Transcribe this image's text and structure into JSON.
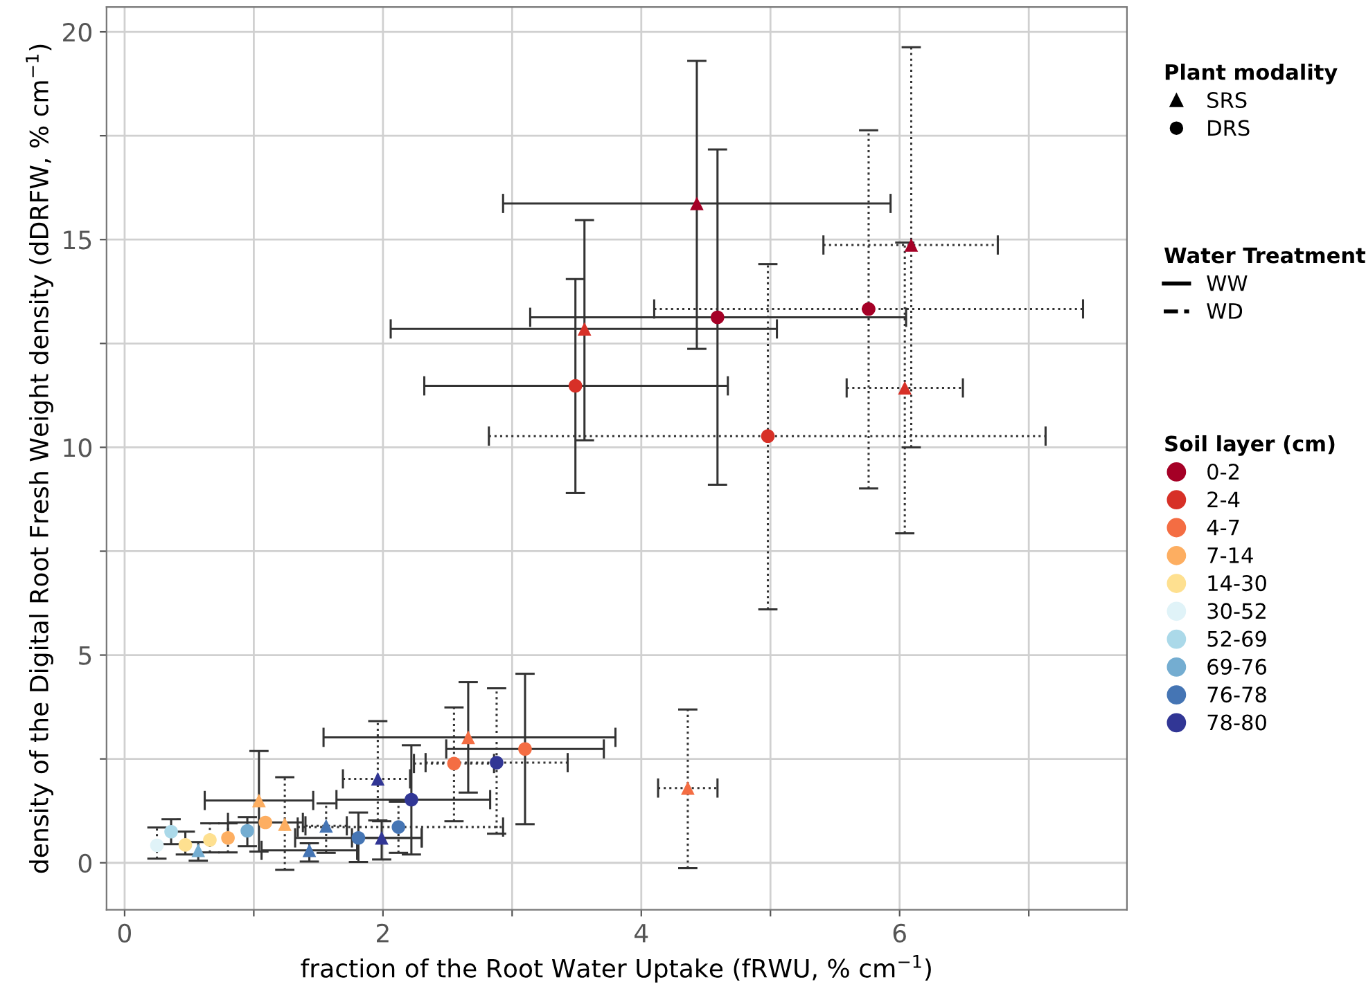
{
  "chart_data": {
    "type": "scatter",
    "xlabel": "fraction of the Root Water Uptake (fRWU, % cm$^{−1}$)",
    "ylabel": "density of the Digital Root Fresh Weight density (dDRFW, % cm$^{−1}$)",
    "xlim": [
      -0.14,
      7.76
    ],
    "ylim": [
      -1.13,
      20.6
    ],
    "xticks": [
      0,
      {
        "value": 1,
        "label": null
      },
      2,
      {
        "value": 3,
        "label": null
      },
      4,
      {
        "value": 5,
        "label": null
      },
      6,
      {
        "value": 7,
        "label": null
      }
    ],
    "yticks": [
      0,
      {
        "value": 2.5,
        "label": null
      },
      5,
      {
        "value": 7.5,
        "label": null
      },
      10,
      {
        "value": 12.5,
        "label": null
      },
      15,
      {
        "value": 17.5,
        "label": null
      },
      20
    ],
    "grid": true,
    "legend": "right",
    "legend_title": [
      "Plant modality",
      "Water Treatment",
      "Soil layer (cm)"
    ],
    "series": [
      {
        "name": "SRS",
        "color": "#000000",
        "marker": "triangle"
      },
      {
        "name": "DRS",
        "color": "#000000",
        "marker": "circle"
      },
      {
        "name": "WW",
        "color": "#000000",
        "line_style": "solid"
      },
      {
        "name": "WD",
        "color": "#000000",
        "line_style": "dashed"
      },
      {
        "name": "0-2",
        "color": "#a50026",
        "marker": "triangle",
        "line_style": "solid",
        "x": [
          4.43
        ],
        "values": [
          15.87
        ],
        "xerrors": [
          [
            2.93,
            5.93
          ]
        ],
        "errors": [
          [
            12.37,
            19.3
          ]
        ]
      },
      {
        "color": "#a50026",
        "marker": "circle",
        "line_style": "solid",
        "x": [
          4.59
        ],
        "values": [
          13.13
        ],
        "xerrors": [
          [
            3.14,
            6.05
          ]
        ],
        "errors": [
          [
            9.1,
            17.17
          ]
        ]
      },
      {
        "color": "#a50026",
        "marker": "circle",
        "line_style": "dotted",
        "x": [
          5.76
        ],
        "values": [
          13.33
        ],
        "xerrors": [
          [
            4.1,
            7.42
          ]
        ],
        "errors": [
          [
            9.01,
            17.63
          ]
        ]
      },
      {
        "color": "#a50026",
        "marker": "triangle",
        "line_style": "dotted",
        "x": [
          6.09
        ],
        "values": [
          14.87
        ],
        "xerrors": [
          [
            5.41,
            6.76
          ]
        ],
        "errors": [
          [
            10.0,
            19.63
          ]
        ]
      },
      {
        "name": "2-4",
        "color": "#d73027",
        "marker": "triangle",
        "line_style": "solid",
        "x": [
          3.56
        ],
        "values": [
          12.85
        ],
        "xerrors": [
          [
            2.06,
            5.05
          ]
        ],
        "errors": [
          [
            10.17,
            15.47
          ]
        ]
      },
      {
        "color": "#d73027",
        "marker": "circle",
        "line_style": "solid",
        "x": [
          3.49
        ],
        "values": [
          11.48
        ],
        "xerrors": [
          [
            2.32,
            4.67
          ]
        ],
        "errors": [
          [
            8.9,
            14.05
          ]
        ]
      },
      {
        "color": "#d73027",
        "marker": "circle",
        "line_style": "dotted",
        "x": [
          4.98
        ],
        "values": [
          10.27
        ],
        "xerrors": [
          [
            2.82,
            7.13
          ]
        ],
        "errors": [
          [
            6.1,
            14.41
          ]
        ]
      },
      {
        "color": "#d73027",
        "marker": "triangle",
        "line_style": "dotted",
        "x": [
          6.04
        ],
        "values": [
          11.43
        ],
        "xerrors": [
          [
            5.59,
            6.49
          ]
        ],
        "errors": [
          [
            7.93,
            14.93
          ]
        ]
      },
      {
        "name": "4-7",
        "color": "#f46d43",
        "marker": "triangle",
        "line_style": "solid",
        "x": [
          2.66
        ],
        "values": [
          3.02
        ],
        "xerrors": [
          [
            1.54,
            3.8
          ]
        ],
        "errors": [
          [
            1.69,
            4.35
          ]
        ]
      },
      {
        "color": "#f46d43",
        "marker": "circle",
        "line_style": "solid",
        "x": [
          3.1
        ],
        "values": [
          2.74
        ],
        "xerrors": [
          [
            2.49,
            3.71
          ]
        ],
        "errors": [
          [
            0.93,
            4.55
          ]
        ]
      },
      {
        "color": "#f46d43",
        "marker": "circle",
        "line_style": "dotted",
        "x": [
          2.55
        ],
        "values": [
          2.39
        ],
        "xerrors": [
          [
            2.24,
            2.86
          ]
        ],
        "errors": [
          [
            1.0,
            3.74
          ]
        ]
      },
      {
        "color": "#f46d43",
        "marker": "triangle",
        "line_style": "dotted",
        "x": [
          4.36
        ],
        "values": [
          1.8
        ],
        "xerrors": [
          [
            4.13,
            4.59
          ]
        ],
        "errors": [
          [
            -0.13,
            3.69
          ]
        ]
      },
      {
        "name": "7-14",
        "color": "#fdae61",
        "marker": "triangle",
        "line_style": "solid",
        "x": [
          1.04
        ],
        "values": [
          1.5
        ],
        "xerrors": [
          [
            0.62,
            1.46
          ]
        ],
        "errors": [
          [
            0.27,
            2.69
          ]
        ]
      },
      {
        "color": "#fdae61",
        "marker": "circle",
        "line_style": "solid",
        "x": [
          1.09
        ],
        "values": [
          0.97
        ],
        "xerrors": [
          [
            0.8,
            1.38
          ]
        ]
      },
      {
        "color": "#fdae61",
        "marker": "circle",
        "line_style": "dotted",
        "x": [
          0.8
        ],
        "values": [
          0.6
        ],
        "errors": [
          [
            0.25,
            0.95
          ]
        ]
      },
      {
        "color": "#fdae61",
        "marker": "triangle",
        "line_style": "dotted",
        "x": [
          1.24
        ],
        "values": [
          0.93
        ],
        "errors": [
          [
            -0.17,
            2.06
          ]
        ]
      },
      {
        "name": "14-30",
        "color": "#fee090",
        "marker": "circle",
        "line_style": "solid",
        "x": [
          0.47
        ],
        "values": [
          0.43
        ],
        "errors": [
          [
            0.2,
            0.75
          ]
        ]
      },
      {
        "color": "#fee090",
        "marker": "circle",
        "line_style": "dotted",
        "x": [
          0.66
        ],
        "values": [
          0.55
        ],
        "errors": [
          [
            0.25,
            0.95
          ]
        ]
      },
      {
        "name": "30-52",
        "color": "#e0f3f8",
        "marker": "circle",
        "line_style": "dotted",
        "x": [
          0.25
        ],
        "values": [
          0.42
        ],
        "errors": [
          [
            0.1,
            0.85
          ]
        ]
      },
      {
        "name": "52-69",
        "color": "#abd9e9",
        "marker": "circle",
        "line_style": "solid",
        "x": [
          0.36
        ],
        "values": [
          0.75
        ],
        "errors": [
          [
            0.45,
            1.05
          ]
        ]
      },
      {
        "name": "69-76",
        "color": "#74add1",
        "marker": "circle",
        "line_style": "solid",
        "x": [
          0.95
        ],
        "values": [
          0.77
        ],
        "errors": [
          [
            0.4,
            1.1
          ]
        ]
      },
      {
        "color": "#74add1",
        "marker": "triangle",
        "line_style": "solid",
        "x": [
          0.57
        ],
        "values": [
          0.3
        ],
        "errors": [
          [
            0.05,
            0.5
          ]
        ]
      },
      {
        "name": "76-78",
        "color": "#4575b4",
        "marker": "triangle",
        "line_style": "solid",
        "x": [
          1.43
        ],
        "values": [
          0.3
        ],
        "xerrors": [
          [
            1.06,
            1.8
          ]
        ],
        "errors": [
          [
            0.03,
            0.47
          ]
        ]
      },
      {
        "color": "#4575b4",
        "marker": "circle",
        "line_style": "solid",
        "x": [
          1.81
        ],
        "values": [
          0.6
        ],
        "xerrors": [
          [
            1.32,
            2.3
          ]
        ],
        "errors": [
          [
            0.02,
            1.21
          ]
        ]
      },
      {
        "color": "#4575b4",
        "marker": "circle",
        "line_style": "dotted",
        "x": [
          2.12
        ],
        "values": [
          0.86
        ],
        "xerrors": [
          [
            1.34,
            2.93
          ]
        ],
        "errors": [
          [
            0.24,
            1.47
          ]
        ]
      },
      {
        "color": "#4575b4",
        "marker": "triangle",
        "line_style": "dotted",
        "x": [
          1.56
        ],
        "values": [
          0.89
        ],
        "xerrors": [
          [
            1.4,
            1.72
          ]
        ],
        "errors": [
          [
            0.24,
            1.43
          ]
        ]
      },
      {
        "name": "78-80",
        "color": "#313695",
        "marker": "triangle",
        "line_style": "solid",
        "x": [
          1.99
        ],
        "values": [
          0.6
        ],
        "xerrors": [
          [
            1.76,
            2.3
          ]
        ],
        "errors": [
          [
            0.08,
            1.0
          ]
        ]
      },
      {
        "color": "#313695",
        "marker": "circle",
        "line_style": "solid",
        "x": [
          2.22
        ],
        "values": [
          1.52
        ],
        "xerrors": [
          [
            1.64,
            2.83
          ]
        ],
        "errors": [
          [
            0.2,
            2.83
          ]
        ]
      },
      {
        "color": "#313695",
        "marker": "circle",
        "line_style": "dotted",
        "x": [
          2.88
        ],
        "values": [
          2.41
        ],
        "xerrors": [
          [
            2.33,
            3.43
          ]
        ],
        "errors": [
          [
            0.7,
            4.2
          ]
        ]
      },
      {
        "color": "#313695",
        "marker": "triangle",
        "line_style": "dotted",
        "x": [
          1.96
        ],
        "values": [
          2.02
        ],
        "xerrors": [
          [
            1.69,
            2.21
          ]
        ],
        "errors": [
          [
            1.02,
            3.41
          ]
        ]
      }
    ]
  }
}
